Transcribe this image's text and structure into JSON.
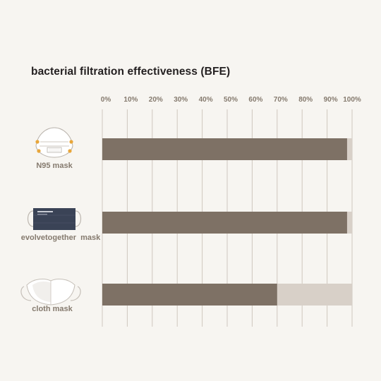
{
  "chart_data": {
    "type": "bar",
    "orientation": "horizontal",
    "title": "bacterial filtration effectiveness (BFE)",
    "categories": [
      "N95 mask",
      "evolvetogether  mask",
      "cloth mask"
    ],
    "category_icons": [
      "n95-mask-icon",
      "evolvetogether-mask-icon",
      "cloth-mask-icon"
    ],
    "values": [
      98,
      98,
      70
    ],
    "xlim": [
      0,
      100
    ],
    "x_tick_labels": [
      "0%",
      "10%",
      "20%",
      "30%",
      "40%",
      "50%",
      "60%",
      "70%",
      "80%",
      "90%",
      "100%"
    ],
    "x_tick_values": [
      0,
      10,
      20,
      30,
      40,
      50,
      60,
      70,
      80,
      90,
      100
    ],
    "grid": true,
    "xlabel": "",
    "ylabel": ""
  },
  "colors": {
    "background": "#f7f5f1",
    "bar": "#7e7165",
    "bar_track": "#d8d0c8",
    "grid": "#cfc7be",
    "tick_text": "#857a6e",
    "title_text": "#231f20",
    "mask_navy": "#3a4356"
  }
}
